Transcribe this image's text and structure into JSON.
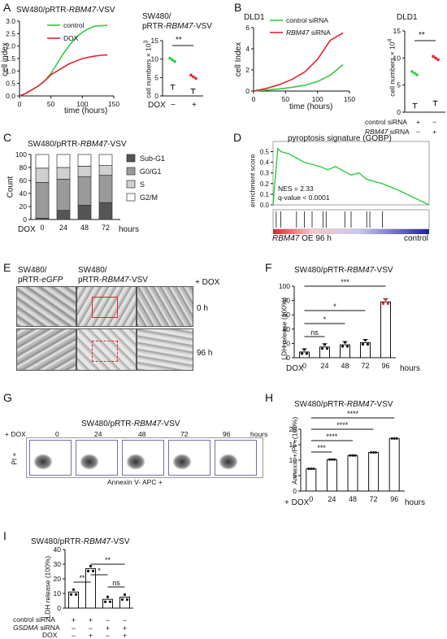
{
  "colors": {
    "control": "#2ecc40",
    "dox": "#e8202a",
    "red": "#e8202a",
    "green": "#2ecc40",
    "gsea_line": "#2ecc40",
    "stack_dark": "#555555",
    "stack_mid": "#9a9a9a",
    "stack_light": "#d0d0d0",
    "stack_white": "#ffffff"
  },
  "panelA": {
    "letter": "A",
    "title": "SW480/pRTR-RBM47-VSV",
    "title_plain": "SW480/pRTR-",
    "title_italic": "RBM47",
    "title_suffix": "-VSV",
    "legend_control": "control",
    "legend_dox": "DOX",
    "xlabel": "time (hours)",
    "ylabel": "cell index",
    "xticks": [
      "0",
      "50",
      "100",
      "150"
    ],
    "yticks": [
      "0.0",
      "0.5",
      "1.0",
      "1.5",
      "2.0",
      "2.5",
      "3.0"
    ],
    "bar_title_l1": "SW480/",
    "bar_title_l2_plain": "pRTR-",
    "bar_title_l2_italic": "RBM47",
    "bar_title_l2_suffix": "-VSV",
    "bar_ylabel": "cell numbers × 10",
    "bar_ylabel_exp": "3",
    "bar_yticks": [
      "0",
      "5",
      "10",
      "15"
    ],
    "sig": "**",
    "dox_label": "DOX",
    "dox_minus": "−",
    "dox_plus": "+"
  },
  "panelB": {
    "letter": "B",
    "title": "DLD1",
    "legend_control": "control siRNA",
    "legend_rbm": "RBM47",
    "legend_rbm_suffix": " siRNA",
    "xlabel": "time (hours)",
    "ylabel": "cell Index",
    "xticks": [
      "0",
      "50",
      "100",
      "150"
    ],
    "yticks": [
      "0",
      "2",
      "4",
      "6"
    ],
    "bar_title": "DLD1",
    "bar_ylabel": "cell numbers × 10",
    "bar_ylabel_exp": "4",
    "bar_yticks": [
      "0",
      "5",
      "10",
      "15"
    ],
    "sig": "**",
    "row1_label": "control siRNA",
    "row1_vals": [
      "+",
      "−"
    ],
    "row2_label_it": "RBM47",
    "row2_label": " siRNA",
    "row2_vals": [
      "−",
      "+"
    ]
  },
  "panelC": {
    "letter": "C",
    "title": "SW480/pRTR-RBM47-VSV",
    "title_plain": "SW480/pRTR-",
    "title_italic": "RBM47",
    "title_suffix": "-VSV",
    "ylabel": "Count",
    "yticks": [
      "0",
      "20",
      "40",
      "60",
      "80",
      "100"
    ],
    "xlabel_prefix": "DOX",
    "xticks": [
      "0",
      "24",
      "48",
      "72"
    ],
    "xunit": "hours",
    "legend": [
      "Sub-G1",
      "G0/G1",
      "S",
      "G2/M"
    ]
  },
  "panelD": {
    "letter": "D",
    "title": "pyroptosis signature (GOBP)",
    "ylabel": "enrichment score",
    "yticks": [
      "0.5",
      "0.4",
      "0.3",
      "0.2",
      "0.1",
      "0.0"
    ],
    "nes": "NES = 2.33",
    "qval": "q-value < 0.0001",
    "left_label_it": "RBM47",
    "left_label": " OE 96 h",
    "right_label": "control"
  },
  "panelE": {
    "letter": "E",
    "col1_l1": "SW480/",
    "col1_l2_plain": "pRTR-",
    "col1_l2_it": "eGFP",
    "col2_l1": "SW480/",
    "col2_l2_plain": "pRTR-",
    "col2_l2_it": "RBM47",
    "col2_l2_suffix": "-VSV",
    "dox": "+ DOX",
    "row1": "0 h",
    "row2": "96 h"
  },
  "panelF": {
    "letter": "F",
    "title_plain": "SW480/pRTR-",
    "title_italic": "RBM47",
    "title_suffix": "-VSV",
    "ylabel": "LDH release (100%)",
    "yticks": [
      "0",
      "20",
      "40",
      "60",
      "80",
      "100"
    ],
    "xprefix": "DOX",
    "xticks": [
      "0",
      "24",
      "48",
      "72",
      "96"
    ],
    "xunit": "hours",
    "sigs": [
      "***",
      "*",
      "*",
      "ns"
    ]
  },
  "panelG": {
    "letter": "G",
    "title_plain": "SW480/pRTR-",
    "title_italic": "RBM47",
    "title_suffix": "-VSV",
    "dox": "+ DOX",
    "times": [
      "0",
      "24",
      "48",
      "72",
      "96"
    ],
    "unit": "hours",
    "ylabel": "PI +",
    "xlabel": "Annexin V- APC +"
  },
  "panelH": {
    "letter": "H",
    "title_plain": "SW480/pRTR-",
    "title_italic": "RBM47",
    "title_suffix": "-VSV",
    "ylabel": "Annexin +/PI +(100%)",
    "yticks": [
      "0",
      "5",
      "10",
      "15",
      "20"
    ],
    "xprefix": "+ DOX",
    "xticks": [
      "0",
      "24",
      "48",
      "72",
      "96"
    ],
    "xunit": "hours",
    "sigs": [
      "****",
      "****",
      "****",
      "***"
    ]
  },
  "panelI": {
    "letter": "I",
    "title_plain": "SW480/pRTR-",
    "title_italic": "RBM47",
    "title_suffix": "-VSV",
    "ylabel": "LDH release (100%)",
    "yticks": [
      "0",
      "10",
      "20",
      "30",
      "40"
    ],
    "sigs": [
      "**",
      "*",
      "**",
      "ns"
    ],
    "row1_label": "control siRNA",
    "row1_vals": [
      "+",
      "+",
      "−",
      "−"
    ],
    "row2_label_it": "GSDMA",
    "row2_label": " siRNA",
    "row2_vals": [
      "−",
      "−",
      "+",
      "+"
    ],
    "row3_label": "DOX",
    "row3_vals": [
      "−",
      "+",
      "−",
      "+"
    ]
  },
  "chart_data": [
    {
      "id": "A-line",
      "type": "line",
      "xlim": [
        0,
        150
      ],
      "ylim": [
        0,
        3
      ],
      "series": [
        {
          "name": "control",
          "x": [
            0,
            10,
            20,
            30,
            40,
            50,
            60,
            70,
            80,
            90,
            100,
            110,
            120,
            130,
            140
          ],
          "values": [
            0,
            0.1,
            0.25,
            0.4,
            0.6,
            0.9,
            1.3,
            1.7,
            2.05,
            2.35,
            2.55,
            2.7,
            2.8,
            2.82,
            2.83
          ]
        },
        {
          "name": "DOX",
          "x": [
            0,
            10,
            20,
            30,
            40,
            50,
            60,
            70,
            80,
            90,
            100,
            110,
            120,
            130,
            140
          ],
          "values": [
            0,
            0.1,
            0.25,
            0.4,
            0.6,
            0.85,
            1.0,
            1.15,
            1.3,
            1.4,
            1.5,
            1.55,
            1.6,
            1.63,
            1.65
          ]
        }
      ]
    },
    {
      "id": "A-bar",
      "type": "bar",
      "categories": [
        "−",
        "+"
      ],
      "values": [
        9.8,
        5.2
      ],
      "ylim": [
        0,
        15
      ]
    },
    {
      "id": "B-line",
      "type": "line",
      "xlim": [
        0,
        150
      ],
      "ylim": [
        0,
        6
      ],
      "series": [
        {
          "name": "control siRNA",
          "x": [
            0,
            20,
            40,
            60,
            80,
            100,
            120,
            140
          ],
          "values": [
            0,
            0.1,
            0.2,
            0.35,
            0.55,
            0.9,
            1.5,
            2.5
          ]
        },
        {
          "name": "RBM47 siRNA",
          "x": [
            0,
            20,
            40,
            60,
            80,
            100,
            120,
            140
          ],
          "values": [
            0,
            0.25,
            0.6,
            1.1,
            1.8,
            3.0,
            4.8,
            5.5
          ]
        }
      ]
    },
    {
      "id": "B-bar",
      "type": "bar",
      "categories": [
        "control siRNA",
        "RBM47 siRNA"
      ],
      "values": [
        7.2,
        10.0
      ],
      "ylim": [
        0,
        15
      ]
    },
    {
      "id": "C-stack",
      "type": "bar",
      "categories": [
        "0",
        "24",
        "48",
        "72"
      ],
      "series": [
        {
          "name": "Sub-G1",
          "values": [
            2,
            14,
            22,
            26
          ]
        },
        {
          "name": "G0/G1",
          "values": [
            55,
            48,
            44,
            42
          ]
        },
        {
          "name": "S",
          "values": [
            22,
            18,
            16,
            15
          ]
        },
        {
          "name": "G2/M",
          "values": [
            21,
            20,
            18,
            17
          ]
        }
      ],
      "ylim": [
        0,
        100
      ]
    },
    {
      "id": "D-gsea",
      "type": "line",
      "ylim": [
        0,
        0.55
      ],
      "series": [
        {
          "x": [
            0,
            0.03,
            0.05,
            0.1,
            0.15,
            0.2,
            0.25,
            0.3,
            0.35,
            0.4,
            0.45,
            0.5,
            0.55,
            0.6,
            0.7,
            0.8,
            0.9,
            1.0
          ],
          "values": [
            0,
            0.53,
            0.5,
            0.48,
            0.44,
            0.4,
            0.38,
            0.36,
            0.33,
            0.36,
            0.32,
            0.28,
            0.3,
            0.24,
            0.2,
            0.14,
            0.07,
            0.0
          ]
        }
      ]
    },
    {
      "id": "F-bar",
      "type": "bar",
      "categories": [
        "0",
        "24",
        "48",
        "72",
        "96"
      ],
      "values": [
        8,
        15,
        18,
        21,
        78
      ],
      "ylim": [
        0,
        100
      ]
    },
    {
      "id": "H-bar",
      "type": "bar",
      "categories": [
        "0",
        "24",
        "48",
        "72",
        "96"
      ],
      "values": [
        7.2,
        10.2,
        11.5,
        12.5,
        17.0
      ],
      "ylim": [
        0,
        20
      ]
    },
    {
      "id": "I-bar",
      "type": "bar",
      "categories": [
        "1",
        "2",
        "3",
        "4"
      ],
      "values": [
        11,
        27,
        6,
        7.5
      ],
      "ylim": [
        0,
        40
      ]
    }
  ]
}
